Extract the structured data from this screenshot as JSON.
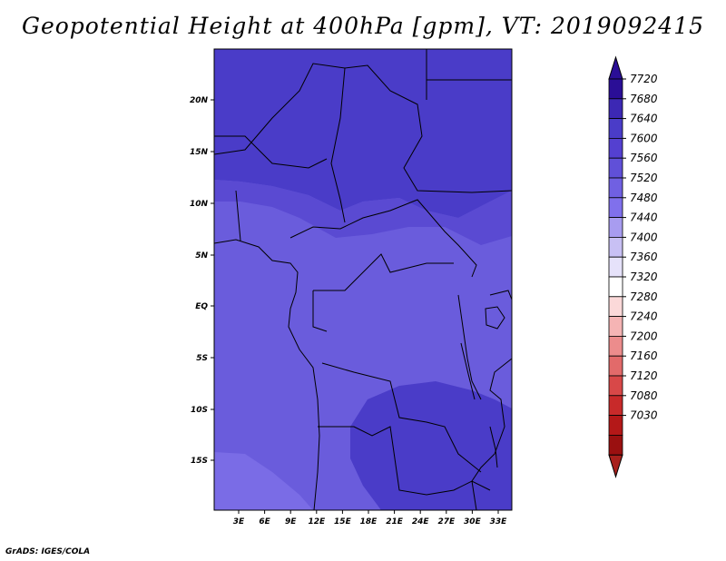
{
  "title": "Geopotential Height at 400hPa [gpm], VT: 2019092415",
  "credit": "GrADS: IGES/COLA",
  "map": {
    "lat_labels": [
      "20N",
      "15N",
      "10N",
      "5N",
      "EQ",
      "5S",
      "10S",
      "15S"
    ],
    "lon_labels": [
      "3E",
      "6E",
      "9E",
      "12E",
      "15E",
      "18E",
      "21E",
      "24E",
      "27E",
      "30E",
      "33E"
    ]
  },
  "colorbar": {
    "levels": [
      "7720",
      "7680",
      "7640",
      "7600",
      "7560",
      "7520",
      "7480",
      "7440",
      "7400",
      "7360",
      "7320",
      "7280",
      "7240",
      "7200",
      "7160",
      "7120",
      "7080",
      "7030"
    ],
    "colors": [
      "#2a0e96",
      "#3c28b4",
      "#4a3cc8",
      "#5440d0",
      "#6050d8",
      "#7060e2",
      "#8070ec",
      "#a89cf0",
      "#c8c0f4",
      "#e6e2fa",
      "#ffffff",
      "#fbd9d9",
      "#f5b4b4",
      "#ec8c8c",
      "#e26a6a",
      "#d84848",
      "#c82a2a",
      "#b41818",
      "#9a1010"
    ],
    "top_color": "#2a0e96",
    "bottom_color": "#a8201c"
  },
  "field_colors": {
    "c7600": "#4a3cc8",
    "c7580": "#5a4ad2",
    "c7560": "#6a5cdc",
    "c7520": "#7a6ce6"
  }
}
